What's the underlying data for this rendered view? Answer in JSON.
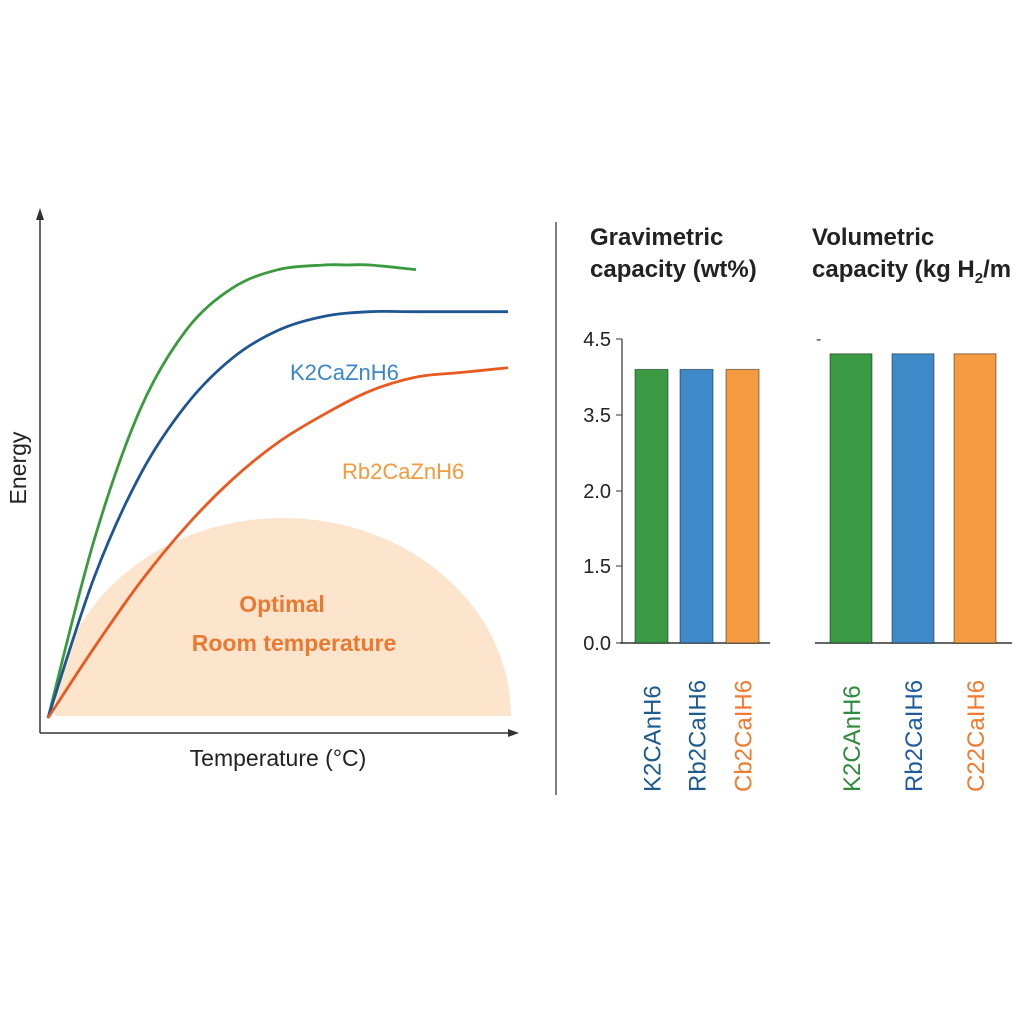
{
  "chart_data": [
    {
      "type": "line",
      "xlabel": "Temperature (°C)",
      "ylabel": "Energy",
      "grid": false,
      "series": [
        {
          "name": "",
          "color": "#3a9a3e",
          "x": [
            0,
            10,
            20,
            30,
            40,
            50,
            60,
            65,
            70,
            80
          ],
          "y": [
            0,
            38,
            66,
            83,
            92,
            96,
            97,
            97,
            97,
            96
          ]
        },
        {
          "name": "K2CaZnH6",
          "color": "#1f5591",
          "label_color": "#3a86c8",
          "x": [
            0,
            10,
            20,
            30,
            40,
            50,
            60,
            70,
            80,
            100
          ],
          "y": [
            0,
            30,
            52,
            67,
            77,
            83,
            86,
            87,
            87,
            87
          ]
        },
        {
          "name": "Rb2CaZnH6",
          "color": "#e85a20",
          "label_color": "#f59a3c",
          "x": [
            0,
            10,
            20,
            30,
            40,
            50,
            60,
            70,
            80,
            90,
            100
          ],
          "y": [
            0,
            15,
            29,
            41,
            51,
            59,
            65,
            70,
            73,
            74,
            75
          ]
        }
      ],
      "region": {
        "label_line1": "Optimal",
        "label_line2": "Room temperature",
        "fill": "#fde4cd",
        "text_color": "#ea7a32"
      }
    },
    {
      "type": "bar",
      "title_line1": "Gravimetric",
      "title_line2": "capacity (wt%)",
      "categories": [
        "K2CAnH6",
        "Rb2CaIH6",
        "Cb2CaIH6"
      ],
      "category_colors": [
        "#1f5a8c",
        "#1f5a8c",
        "#f07a30"
      ],
      "values": [
        4.1,
        4.1,
        4.1
      ],
      "bar_colors": [
        "#3b9a44",
        "#3e8ac8",
        "#f59c42"
      ],
      "yticks": [
        "4.5",
        "3.5",
        "2.0",
        "1.5",
        "0.0"
      ]
    },
    {
      "type": "bar",
      "title_line1": "Volumetric",
      "title_line2_prefix": "capacity (kg H",
      "title_line2_sub": "2",
      "title_line2_suffix": "/m",
      "categories": [
        "K2CAnH6",
        "Rb2CaIH6",
        "C22CaIH6"
      ],
      "category_colors": [
        "#2e8a3c",
        "#1f5a9c",
        "#f07a30"
      ],
      "values": [
        4.2,
        4.2,
        4.2
      ],
      "bar_colors": [
        "#3b9a44",
        "#3e8ac8",
        "#f59c42"
      ],
      "yticks": [
        "-"
      ]
    }
  ]
}
